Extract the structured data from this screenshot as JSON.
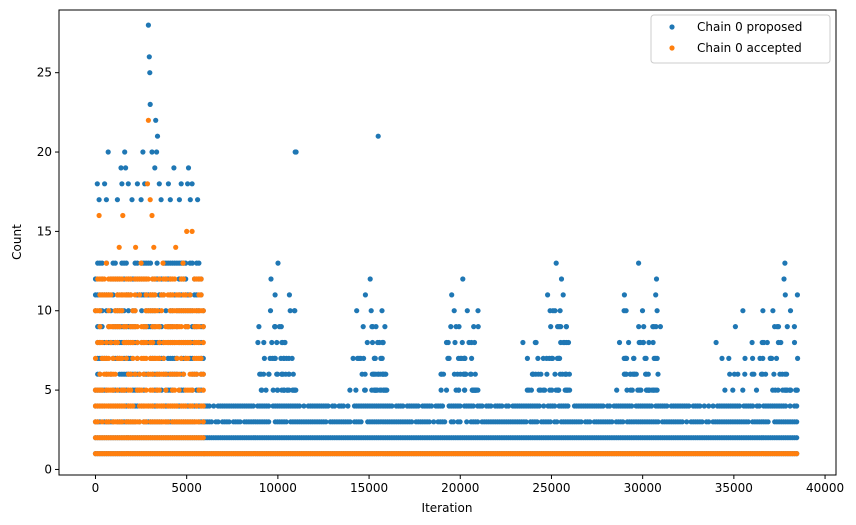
{
  "chart_data": {
    "type": "scatter",
    "title": "",
    "xlabel": "Iteration",
    "ylabel": "Count",
    "xlim": [
      -2000,
      40600
    ],
    "ylim": [
      -0.35,
      28.95
    ],
    "xticks": [
      0,
      5000,
      10000,
      15000,
      20000,
      25000,
      30000,
      35000,
      40000
    ],
    "yticks": [
      0,
      5,
      10,
      15,
      20,
      25
    ],
    "legend_position": "upper-right",
    "grid": false,
    "series": [
      {
        "name": "Chain 0 proposed",
        "color": "#1f77b4",
        "bands": [
          {
            "x_start": 0,
            "x_end": 6000,
            "y_min": 1,
            "y_max": 13
          },
          {
            "x_start": 6000,
            "x_end": 38500,
            "y_min": 1,
            "y_max": 4
          }
        ],
        "bursts": [
          {
            "x_start": 8000,
            "x_end": 11000,
            "y_max": 13
          },
          {
            "x_start": 13000,
            "x_end": 16000,
            "y_max": 12
          },
          {
            "x_start": 18000,
            "x_end": 21000,
            "y_max": 12
          },
          {
            "x_start": 22500,
            "x_end": 26000,
            "y_max": 13
          },
          {
            "x_start": 27500,
            "x_end": 31000,
            "y_max": 13
          },
          {
            "x_start": 32500,
            "x_end": 38500,
            "y_max": 13
          }
        ],
        "points": [
          {
            "x": 2900,
            "y": 28
          },
          {
            "x": 2950,
            "y": 26
          },
          {
            "x": 2980,
            "y": 25
          },
          {
            "x": 3000,
            "y": 23
          },
          {
            "x": 3300,
            "y": 22
          },
          {
            "x": 3400,
            "y": 21
          },
          {
            "x": 3100,
            "y": 20
          },
          {
            "x": 3350,
            "y": 20
          },
          {
            "x": 700,
            "y": 20
          },
          {
            "x": 1600,
            "y": 20
          },
          {
            "x": 2600,
            "y": 20
          },
          {
            "x": 5100,
            "y": 19
          },
          {
            "x": 4300,
            "y": 19
          },
          {
            "x": 1400,
            "y": 19
          },
          {
            "x": 1650,
            "y": 19
          },
          {
            "x": 3250,
            "y": 19
          },
          {
            "x": 100,
            "y": 18
          },
          {
            "x": 500,
            "y": 18
          },
          {
            "x": 1450,
            "y": 18
          },
          {
            "x": 1800,
            "y": 18
          },
          {
            "x": 2300,
            "y": 18
          },
          {
            "x": 2700,
            "y": 18
          },
          {
            "x": 3500,
            "y": 18
          },
          {
            "x": 4000,
            "y": 18
          },
          {
            "x": 4700,
            "y": 18
          },
          {
            "x": 5050,
            "y": 18
          },
          {
            "x": 5300,
            "y": 18
          },
          {
            "x": 200,
            "y": 17
          },
          {
            "x": 600,
            "y": 17
          },
          {
            "x": 1200,
            "y": 17
          },
          {
            "x": 2000,
            "y": 17
          },
          {
            "x": 2500,
            "y": 17
          },
          {
            "x": 3600,
            "y": 17
          },
          {
            "x": 4100,
            "y": 17
          },
          {
            "x": 4600,
            "y": 17
          },
          {
            "x": 5200,
            "y": 17
          },
          {
            "x": 5600,
            "y": 17
          },
          {
            "x": 11000,
            "y": 20
          },
          {
            "x": 10950,
            "y": 20
          },
          {
            "x": 15500,
            "y": 21
          }
        ]
      },
      {
        "name": "Chain 0 accepted",
        "color": "#ff7f0e",
        "bands": [
          {
            "x_start": 0,
            "x_end": 6000,
            "y_min": 1,
            "y_max": 12
          },
          {
            "x_start": 6000,
            "x_end": 38500,
            "y_min": 1,
            "y_max": 1
          }
        ],
        "points": [
          {
            "x": 2900,
            "y": 22
          },
          {
            "x": 2850,
            "y": 18
          },
          {
            "x": 3000,
            "y": 17
          },
          {
            "x": 200,
            "y": 16
          },
          {
            "x": 1500,
            "y": 16
          },
          {
            "x": 3100,
            "y": 16
          },
          {
            "x": 5300,
            "y": 15
          },
          {
            "x": 5000,
            "y": 15
          },
          {
            "x": 2200,
            "y": 14
          },
          {
            "x": 4400,
            "y": 14
          },
          {
            "x": 1300,
            "y": 14
          },
          {
            "x": 3200,
            "y": 14
          },
          {
            "x": 600,
            "y": 13
          },
          {
            "x": 2500,
            "y": 13
          },
          {
            "x": 3700,
            "y": 13
          },
          {
            "x": 4800,
            "y": 13
          }
        ]
      }
    ]
  }
}
